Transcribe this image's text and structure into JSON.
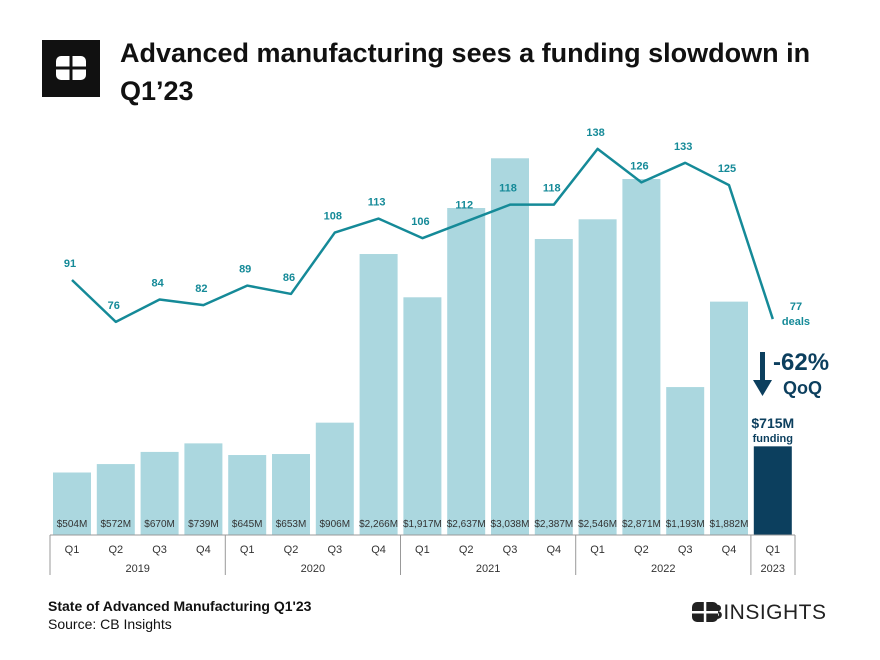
{
  "header": {
    "title": "Advanced manufacturing sees a funding slowdown in Q1’23"
  },
  "footer": {
    "report": "State of Advanced Manufacturing Q1'23",
    "source": "Source: CB Insights",
    "brand_bold": "CB",
    "brand_rest": "INSIGHTS"
  },
  "colors": {
    "bar": "#abd7df",
    "bar_highlight": "#0c3f5e",
    "line": "#158a98",
    "text_dark": "#0c3f5e"
  },
  "chart_data": {
    "type": "bar+line",
    "categories": [
      "Q1",
      "Q2",
      "Q3",
      "Q4",
      "Q1",
      "Q2",
      "Q3",
      "Q4",
      "Q1",
      "Q2",
      "Q3",
      "Q4",
      "Q1",
      "Q2",
      "Q3",
      "Q4",
      "Q1"
    ],
    "years": [
      {
        "label": "2019",
        "quarters": 4
      },
      {
        "label": "2020",
        "quarters": 4
      },
      {
        "label": "2021",
        "quarters": 4
      },
      {
        "label": "2022",
        "quarters": 4
      },
      {
        "label": "2023",
        "quarters": 1
      }
    ],
    "series": [
      {
        "name": "funding",
        "unit": "$M",
        "type": "bar",
        "values": [
          504,
          572,
          670,
          739,
          645,
          653,
          906,
          2266,
          1917,
          2637,
          3038,
          2387,
          2546,
          2871,
          1193,
          1882,
          715
        ],
        "labels": [
          "$504M",
          "$572M",
          "$670M",
          "$739M",
          "$645M",
          "$653M",
          "$906M",
          "$2,266M",
          "$1,917M",
          "$2,637M",
          "$3,038M",
          "$2,387M",
          "$2,546M",
          "$2,871M",
          "$1,193M",
          "$1,882M",
          ""
        ]
      },
      {
        "name": "deals",
        "type": "line",
        "values": [
          91,
          76,
          84,
          82,
          89,
          86,
          108,
          113,
          106,
          112,
          118,
          118,
          138,
          126,
          133,
          125,
          77
        ]
      }
    ],
    "annotations": {
      "deals_last": "77",
      "deals_word": "deals",
      "change": "-62%",
      "change_unit": "QoQ",
      "funding_last": "$715M",
      "funding_word": "funding"
    }
  }
}
